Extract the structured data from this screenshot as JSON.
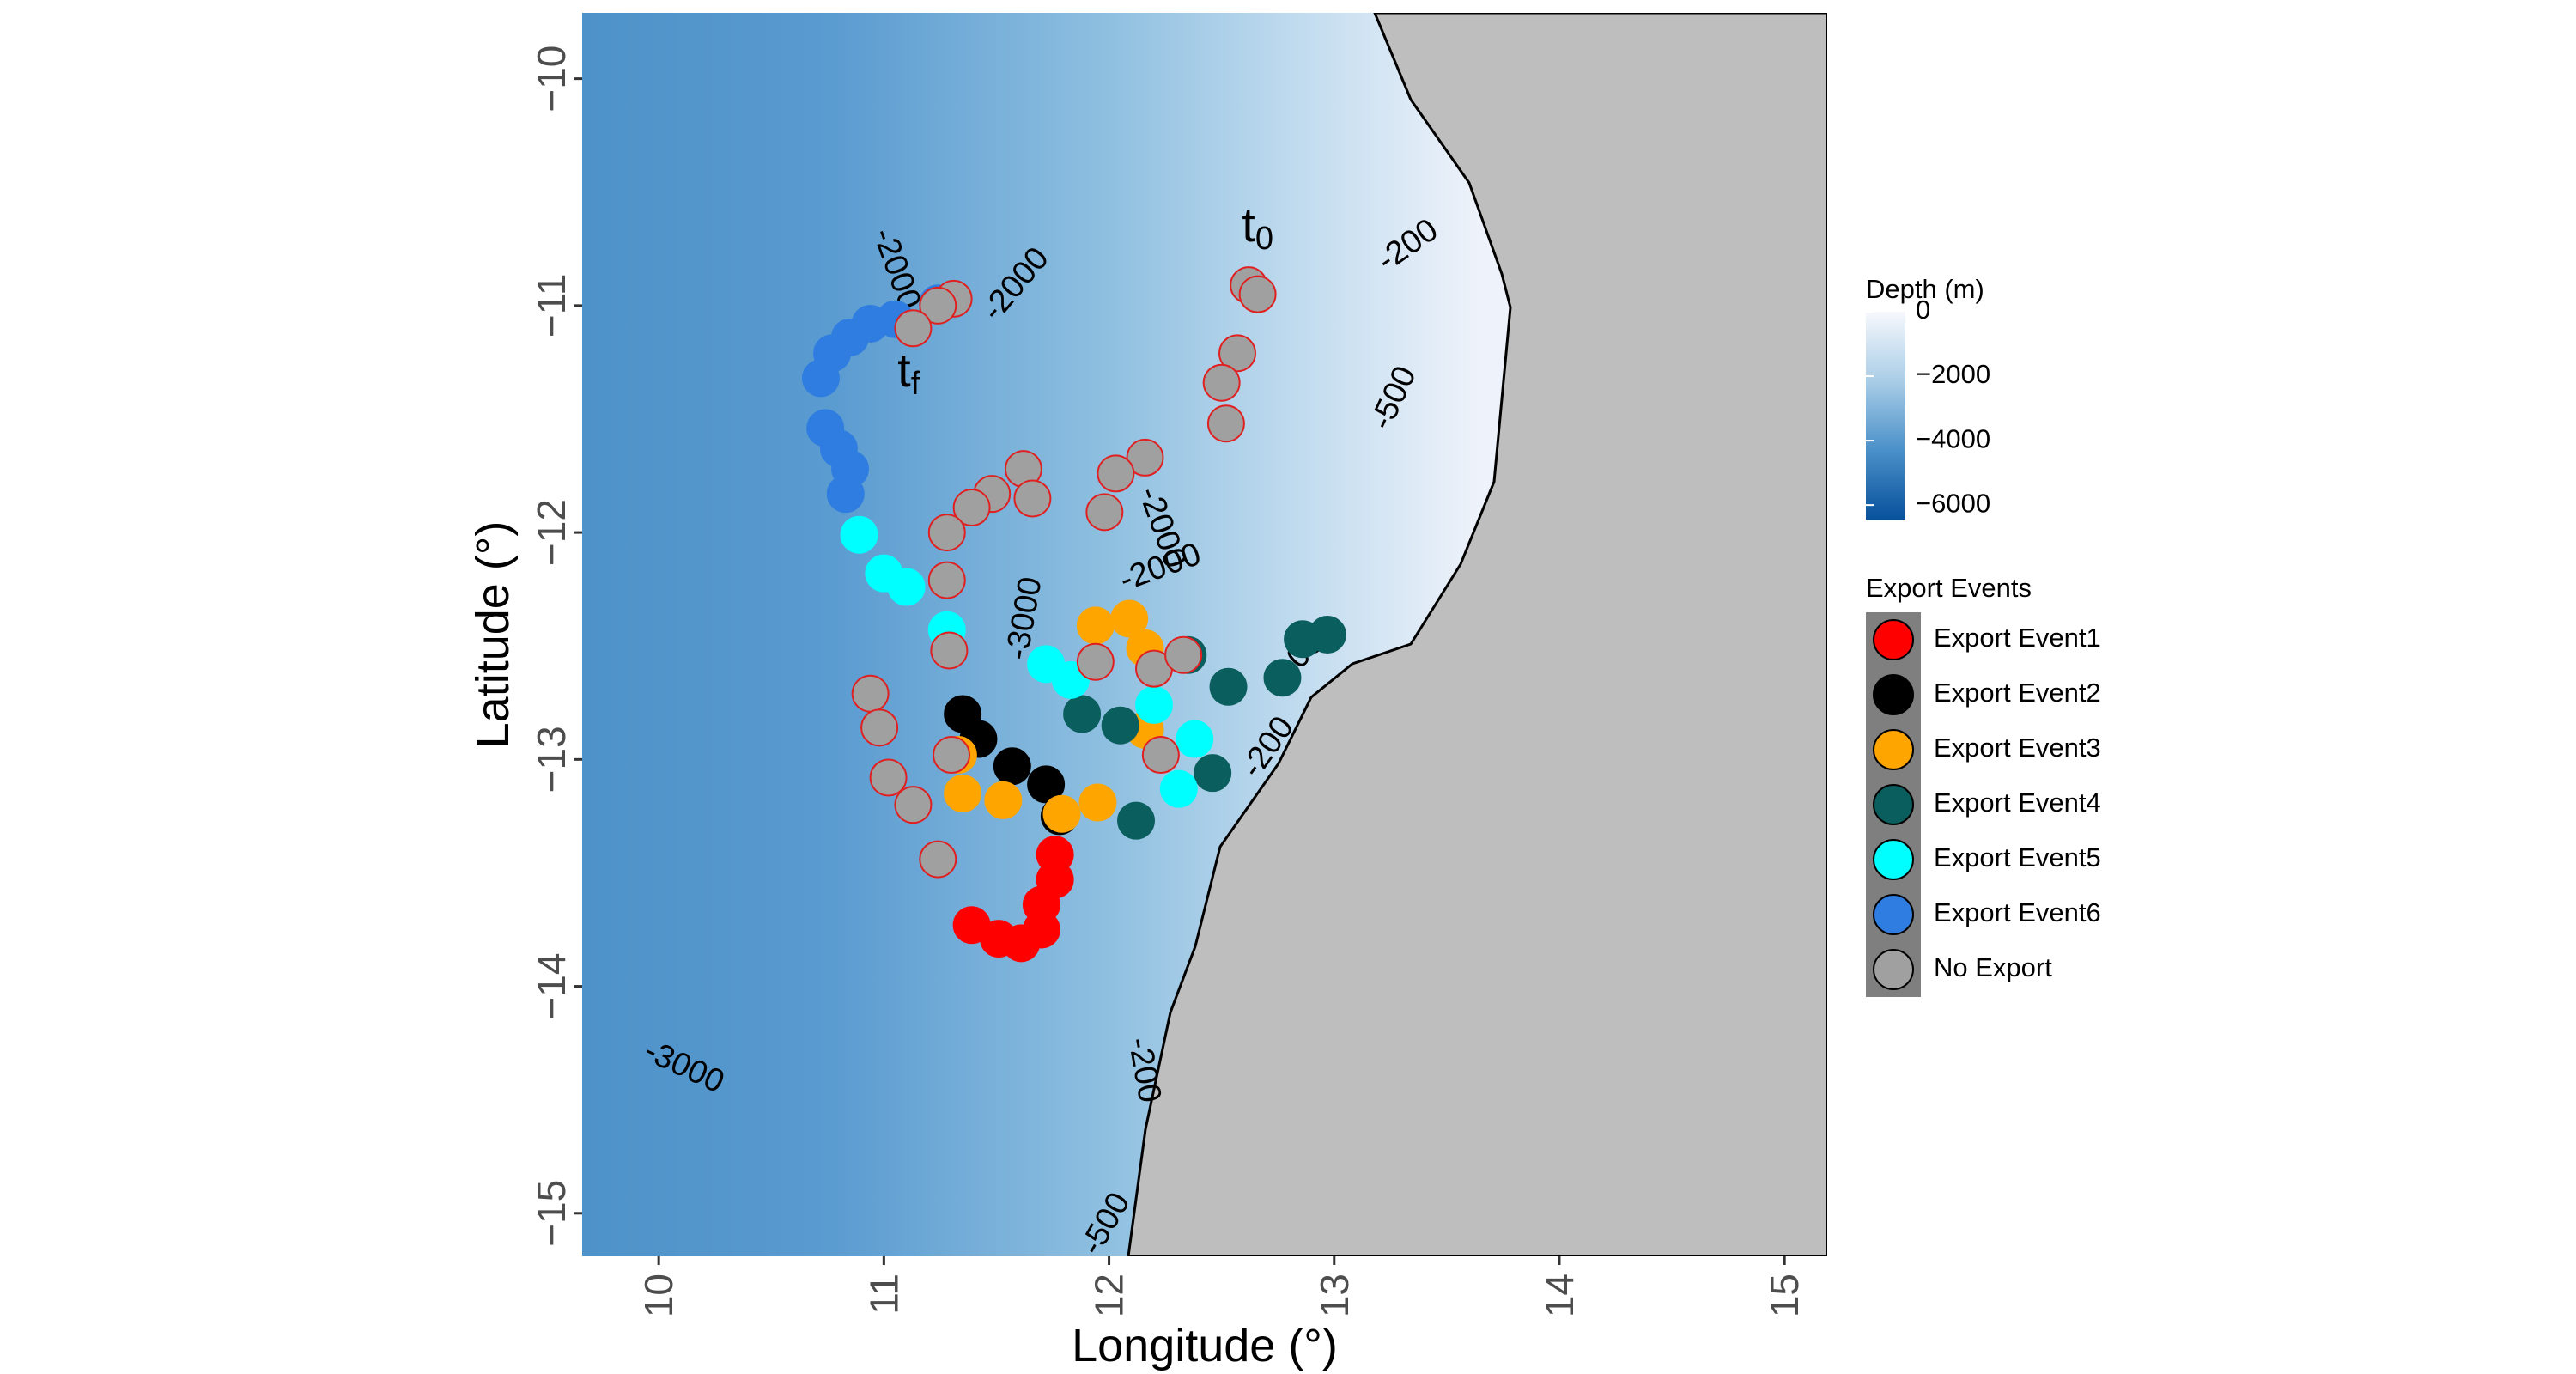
{
  "chart_data": {
    "type": "scatter",
    "x_label": "Longitude (°)",
    "y_label": "Latitude (°)",
    "xlim": [
      9.66,
      15.19
    ],
    "ylim": [
      -15.19,
      -9.71
    ],
    "xticks": [
      10,
      11,
      12,
      13,
      14,
      15
    ],
    "yticks": [
      {
        "value": -10,
        "label": "−10"
      },
      {
        "value": -11,
        "label": "−11"
      },
      {
        "value": -12,
        "label": "−12"
      },
      {
        "value": -13,
        "label": "−13"
      },
      {
        "value": -14,
        "label": "−14"
      },
      {
        "value": -15,
        "label": "−15"
      }
    ],
    "legend_title": "Export Events",
    "legend_position": "right",
    "series": [
      {
        "name": "Export Event1",
        "color": "#ff0000",
        "edge_color": "#ff0000",
        "x": [
          11.76,
          11.76,
          11.7,
          11.7,
          11.61,
          11.51,
          11.39
        ],
        "y": [
          -13.42,
          -13.53,
          -13.64,
          -13.75,
          -13.81,
          -13.79,
          -13.73
        ]
      },
      {
        "name": "Export Event2",
        "color": "#000000",
        "edge_color": "#000000",
        "x": [
          11.35,
          11.42,
          11.57,
          11.72,
          11.78
        ],
        "y": [
          -12.8,
          -12.91,
          -13.03,
          -13.11,
          -13.25
        ]
      },
      {
        "name": "Export Event3",
        "color": "#ffa500",
        "edge_color": "#ffa500",
        "x": [
          11.94,
          12.09,
          12.16,
          12.16,
          11.33,
          11.35,
          11.53,
          11.79,
          11.95
        ],
        "y": [
          -12.41,
          -12.38,
          -12.51,
          -12.87,
          -12.98,
          -13.15,
          -13.18,
          -13.24,
          -13.19
        ]
      },
      {
        "name": "Export Event4",
        "color": "#0b5e5e",
        "edge_color": "#0b5e5e",
        "x": [
          11.88,
          12.05,
          12.12,
          12.46,
          12.53,
          12.77,
          12.86,
          12.97,
          12.35
        ],
        "y": [
          -12.8,
          -12.85,
          -13.27,
          -13.06,
          -12.68,
          -12.64,
          -12.47,
          -12.45,
          -12.54
        ]
      },
      {
        "name": "Export Event5",
        "color": "#00ffff",
        "edge_color": "#00ffff",
        "x": [
          10.89,
          11.0,
          11.1,
          11.28,
          11.72,
          11.83,
          12.2,
          12.38,
          12.31
        ],
        "y": [
          -12.01,
          -12.18,
          -12.24,
          -12.43,
          -12.58,
          -12.65,
          -12.76,
          -12.91,
          -13.13
        ]
      },
      {
        "name": "Export Event6",
        "color": "#2f7de1",
        "edge_color": "#2f7de1",
        "x": [
          11.24,
          11.05,
          10.94,
          10.85,
          10.77,
          10.72,
          10.74,
          10.8,
          10.85,
          10.83
        ],
        "y": [
          -10.99,
          -11.06,
          -11.08,
          -11.14,
          -11.21,
          -11.32,
          -11.54,
          -11.63,
          -11.72,
          -11.83
        ]
      },
      {
        "name": "No Export",
        "color": "#a0a0a0",
        "edge_color": "#e02020",
        "x": [
          12.62,
          12.66,
          12.57,
          12.5,
          12.52,
          12.16,
          12.03,
          11.98,
          11.62,
          11.66,
          11.48,
          11.39,
          11.28,
          11.28,
          11.29,
          10.94,
          10.98,
          11.02,
          11.13,
          11.24,
          11.31,
          11.24,
          11.13,
          11.94,
          12.2,
          12.33,
          12.23,
          11.3
        ],
        "y": [
          -10.91,
          -10.95,
          -11.21,
          -11.34,
          -11.52,
          -11.67,
          -11.74,
          -11.91,
          -11.72,
          -11.85,
          -11.83,
          -11.89,
          -12.0,
          -12.21,
          -12.52,
          -12.71,
          -12.86,
          -13.08,
          -13.2,
          -13.44,
          -10.97,
          -11.0,
          -11.1,
          -12.57,
          -12.6,
          -12.54,
          -12.98,
          -12.98
        ]
      }
    ],
    "time_labels": [
      {
        "base": "t",
        "sub": "0",
        "x": 12.66,
        "y": -10.66
      },
      {
        "base": "t",
        "sub": "f",
        "x": 11.11,
        "y": -11.3
      }
    ],
    "contour_labels": [
      {
        "text": "-2000",
        "x": 11.05,
        "y": -10.84
      },
      {
        "text": "-2000",
        "x": 11.59,
        "y": -10.91
      },
      {
        "text": "-200",
        "x": 13.33,
        "y": -10.74
      },
      {
        "text": "-500",
        "x": 13.27,
        "y": -11.41
      },
      {
        "text": "-2000",
        "x": 12.23,
        "y": -11.98
      },
      {
        "text": "-2000",
        "x": 12.23,
        "y": -12.16
      },
      {
        "text": "-3000",
        "x": 11.63,
        "y": -12.38
      },
      {
        "text": "-1000",
        "x": 12.86,
        "y": -12.54
      },
      {
        "text": "-200",
        "x": 12.71,
        "y": -12.95
      },
      {
        "text": "-200",
        "x": 12.15,
        "y": -14.37
      },
      {
        "text": "-3000",
        "x": 10.11,
        "y": -14.36
      },
      {
        "text": "-500",
        "x": 11.99,
        "y": -15.05
      }
    ],
    "colorbar": {
      "title": "Depth (m)",
      "lim": [
        -6450,
        0
      ],
      "ticks": [
        0,
        {
          "value": -2000,
          "label": "−2000"
        },
        {
          "value": -4000,
          "label": "−4000"
        },
        {
          "value": -6000,
          "label": "−6000"
        }
      ],
      "colors": [
        "#08519c",
        "#4a90c9",
        "#a9cde6",
        "#f7f8fd"
      ]
    }
  }
}
